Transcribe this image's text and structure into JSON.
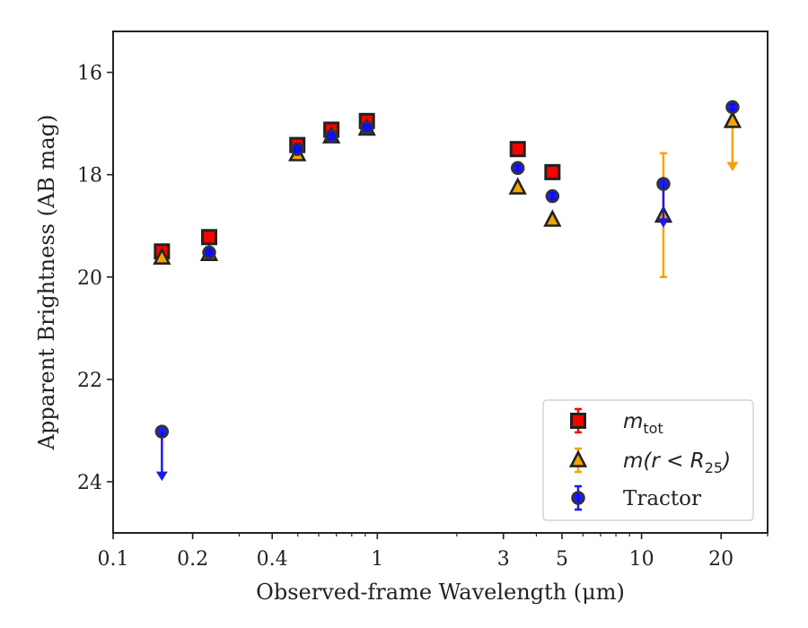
{
  "chart_data": {
    "type": "scatter",
    "xlabel": "Observed-frame Wavelength (μm)",
    "ylabel": "Apparent Brightness (AB mag)",
    "x_scale": "log",
    "xlim": [
      0.1,
      30
    ],
    "ylim": [
      25.0,
      15.2
    ],
    "y_inverted": true,
    "grid": false,
    "legend_position": "lower-right",
    "x_ticks": [
      {
        "value": 0.1,
        "label": "0.1"
      },
      {
        "value": 0.2,
        "label": "0.2"
      },
      {
        "value": 0.4,
        "label": "0.4"
      },
      {
        "value": 1,
        "label": "1"
      },
      {
        "value": 3,
        "label": "3"
      },
      {
        "value": 5,
        "label": "5"
      },
      {
        "value": 10,
        "label": "10"
      },
      {
        "value": 20,
        "label": "20"
      }
    ],
    "y_ticks": [
      {
        "value": 16,
        "label": "16"
      },
      {
        "value": 18,
        "label": "18"
      },
      {
        "value": 20,
        "label": "20"
      },
      {
        "value": 22,
        "label": "22"
      },
      {
        "value": 24,
        "label": "24"
      }
    ],
    "series": [
      {
        "name": "m_tot",
        "legend_base": "m",
        "legend_sub": "tot",
        "legend_rest": "",
        "marker": "square",
        "color": "#ff0000",
        "edge_color": "#222222",
        "errbar_color": "#ff0000",
        "points": [
          {
            "x": 0.153,
            "y": 19.5,
            "err": 0.07
          },
          {
            "x": 0.231,
            "y": 19.22,
            "err": 0.07
          },
          {
            "x": 0.498,
            "y": 17.42,
            "err": 0.06
          },
          {
            "x": 0.67,
            "y": 17.12,
            "err": 0.06
          },
          {
            "x": 0.913,
            "y": 16.95,
            "err": 0.06
          },
          {
            "x": 3.4,
            "y": 17.5,
            "err": 0.05
          },
          {
            "x": 4.6,
            "y": 17.95,
            "err": 0.05
          }
        ]
      },
      {
        "name": "m(r < R25)",
        "legend_base": "m(r < R",
        "legend_sub": "25",
        "legend_rest": ")",
        "marker": "triangle",
        "color": "#f5a300",
        "edge_color": "#222222",
        "errbar_color": "#f5a300",
        "points": [
          {
            "x": 0.153,
            "y": 19.62,
            "err": 0.06
          },
          {
            "x": 0.231,
            "y": 19.55,
            "err": 0.06
          },
          {
            "x": 0.498,
            "y": 17.6,
            "err": 0.05
          },
          {
            "x": 0.67,
            "y": 17.25,
            "err": 0.05
          },
          {
            "x": 0.913,
            "y": 17.1,
            "err": 0.05
          },
          {
            "x": 3.4,
            "y": 18.25,
            "err": 0.05
          },
          {
            "x": 4.6,
            "y": 18.88,
            "err": 0.05
          },
          {
            "x": 12.1,
            "y": 18.8,
            "err_low": 1.22,
            "err_high": 1.2
          },
          {
            "x": 22.1,
            "y": 16.95,
            "upper_limit": true,
            "limit_to": 17.9
          }
        ]
      },
      {
        "name": "Tractor",
        "legend_base": "Tractor",
        "legend_sub": "",
        "legend_rest": "",
        "marker": "circle",
        "color": "#0a0aff",
        "edge_color": "#333333",
        "errbar_color": "#1a1aee",
        "points": [
          {
            "x": 0.153,
            "y": 23.02,
            "upper_limit": true,
            "limit_to": 23.95
          },
          {
            "x": 0.231,
            "y": 19.52,
            "err": 0.06
          },
          {
            "x": 0.498,
            "y": 17.5,
            "err": 0.05
          },
          {
            "x": 0.67,
            "y": 17.25,
            "err": 0.05
          },
          {
            "x": 0.913,
            "y": 17.08,
            "err": 0.05
          },
          {
            "x": 3.4,
            "y": 17.87,
            "err": 0.05
          },
          {
            "x": 4.6,
            "y": 18.42,
            "err": 0.06
          },
          {
            "x": 12.1,
            "y": 18.18,
            "upper_limit": true,
            "limit_to": 19.0
          },
          {
            "x": 22.1,
            "y": 16.68,
            "err": 0.06
          }
        ]
      }
    ]
  }
}
